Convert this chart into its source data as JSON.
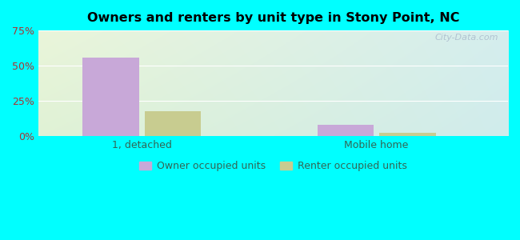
{
  "title": "Owners and renters by unit type in Stony Point, NC",
  "categories": [
    "1, detached",
    "Mobile home"
  ],
  "owner_values": [
    55.5,
    8.0
  ],
  "renter_values": [
    18.0,
    2.5
  ],
  "owner_color": "#c8a8d8",
  "renter_color": "#c8cc90",
  "ylim": [
    0,
    75
  ],
  "yticks": [
    0,
    25,
    50,
    75
  ],
  "ytick_labels": [
    "0%",
    "25%",
    "50%",
    "75%"
  ],
  "background_color": "#00ffff",
  "legend_owner": "Owner occupied units",
  "legend_renter": "Renter occupied units",
  "watermark": "City-Data.com",
  "bar_width": 0.12,
  "group_centers": [
    0.22,
    0.72
  ],
  "xlabel_color": "#336655",
  "ylabel_color": "#aa3333",
  "tick_fontsize": 9
}
